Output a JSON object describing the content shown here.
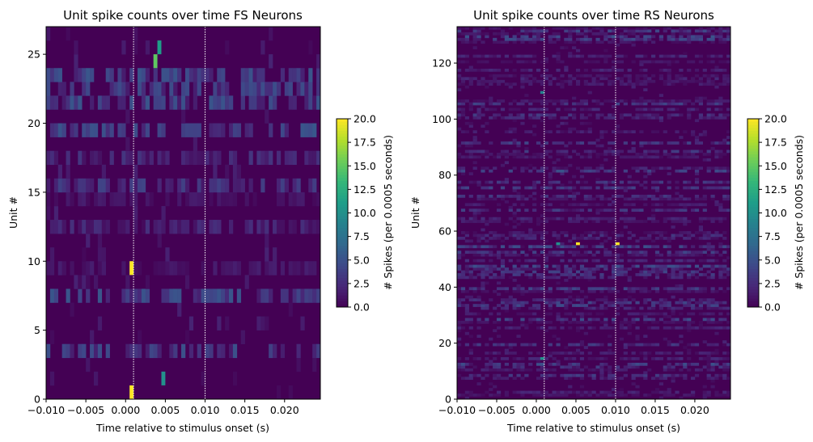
{
  "chart_data": [
    {
      "type": "heatmap",
      "title": "Unit spike counts over time FS Neurons",
      "xlabel": "Time relative to stimulus onset (s)",
      "ylabel": "Unit #",
      "xlim": [
        -0.01,
        0.0245
      ],
      "ylim": [
        0,
        27
      ],
      "x_ticks": [
        "-0.010",
        "-0.005",
        "0.000",
        "0.005",
        "0.010",
        "0.015",
        "0.020"
      ],
      "x_tick_values": [
        -0.01,
        -0.005,
        0.0,
        0.005,
        0.01,
        0.015,
        0.02
      ],
      "y_ticks": [
        "0",
        "5",
        "10",
        "15",
        "20",
        "25"
      ],
      "y_tick_values": [
        0,
        5,
        10,
        15,
        20,
        25
      ],
      "n_units": 27,
      "bin_width_s": 0.0005,
      "vlines_s": [
        0.001,
        0.01
      ],
      "colorbar": {
        "label": "# Spikes (per 0.0005 seconds)",
        "range": [
          0.0,
          20.0
        ],
        "ticks": [
          "0.0",
          "2.5",
          "5.0",
          "7.5",
          "10.0",
          "12.5",
          "15.0",
          "17.5",
          "20.0"
        ],
        "tick_values": [
          0,
          2.5,
          5,
          7.5,
          10,
          12.5,
          15,
          17.5,
          20
        ],
        "colormap": "viridis"
      },
      "highlights": [
        {
          "unit": 0,
          "t": 0.0005,
          "value": 20
        },
        {
          "unit": 9,
          "t": 0.0005,
          "value": 20
        },
        {
          "unit": 1,
          "t": 0.0045,
          "value": 10
        },
        {
          "unit": 24,
          "t": 0.0035,
          "value": 15
        },
        {
          "unit": 25,
          "t": 0.004,
          "value": 11
        }
      ]
    },
    {
      "type": "heatmap",
      "title": "Unit spike counts over time RS Neurons",
      "xlabel": "Time relative to stimulus onset (s)",
      "ylabel": "Unit #",
      "xlim": [
        -0.01,
        0.0245
      ],
      "ylim": [
        0,
        133
      ],
      "x_ticks": [
        "-0.010",
        "-0.005",
        "0.000",
        "0.005",
        "0.010",
        "0.015",
        "0.020"
      ],
      "x_tick_values": [
        -0.01,
        -0.005,
        0.0,
        0.005,
        0.01,
        0.015,
        0.02
      ],
      "y_ticks": [
        "0",
        "20",
        "40",
        "60",
        "80",
        "100",
        "120"
      ],
      "y_tick_values": [
        0,
        20,
        40,
        60,
        80,
        100,
        120
      ],
      "n_units": 133,
      "bin_width_s": 0.0005,
      "vlines_s": [
        0.001,
        0.01
      ],
      "colorbar": {
        "label": "# Spikes (per 0.0005 seconds)",
        "range": [
          0.0,
          20.0
        ],
        "ticks": [
          "0.0",
          "2.5",
          "5.0",
          "7.5",
          "10.0",
          "12.5",
          "15.0",
          "17.5",
          "20.0"
        ],
        "tick_values": [
          0,
          2.5,
          5,
          7.5,
          10,
          12.5,
          15,
          17.5,
          20
        ],
        "colormap": "viridis"
      },
      "highlights": [
        {
          "unit": 55,
          "t": 0.005,
          "value": 20
        },
        {
          "unit": 55,
          "t": 0.01,
          "value": 20
        },
        {
          "unit": 55,
          "t": 0.0025,
          "value": 10
        },
        {
          "unit": 14,
          "t": 0.0005,
          "value": 10
        },
        {
          "unit": 109,
          "t": 0.0005,
          "value": 9
        }
      ]
    }
  ]
}
